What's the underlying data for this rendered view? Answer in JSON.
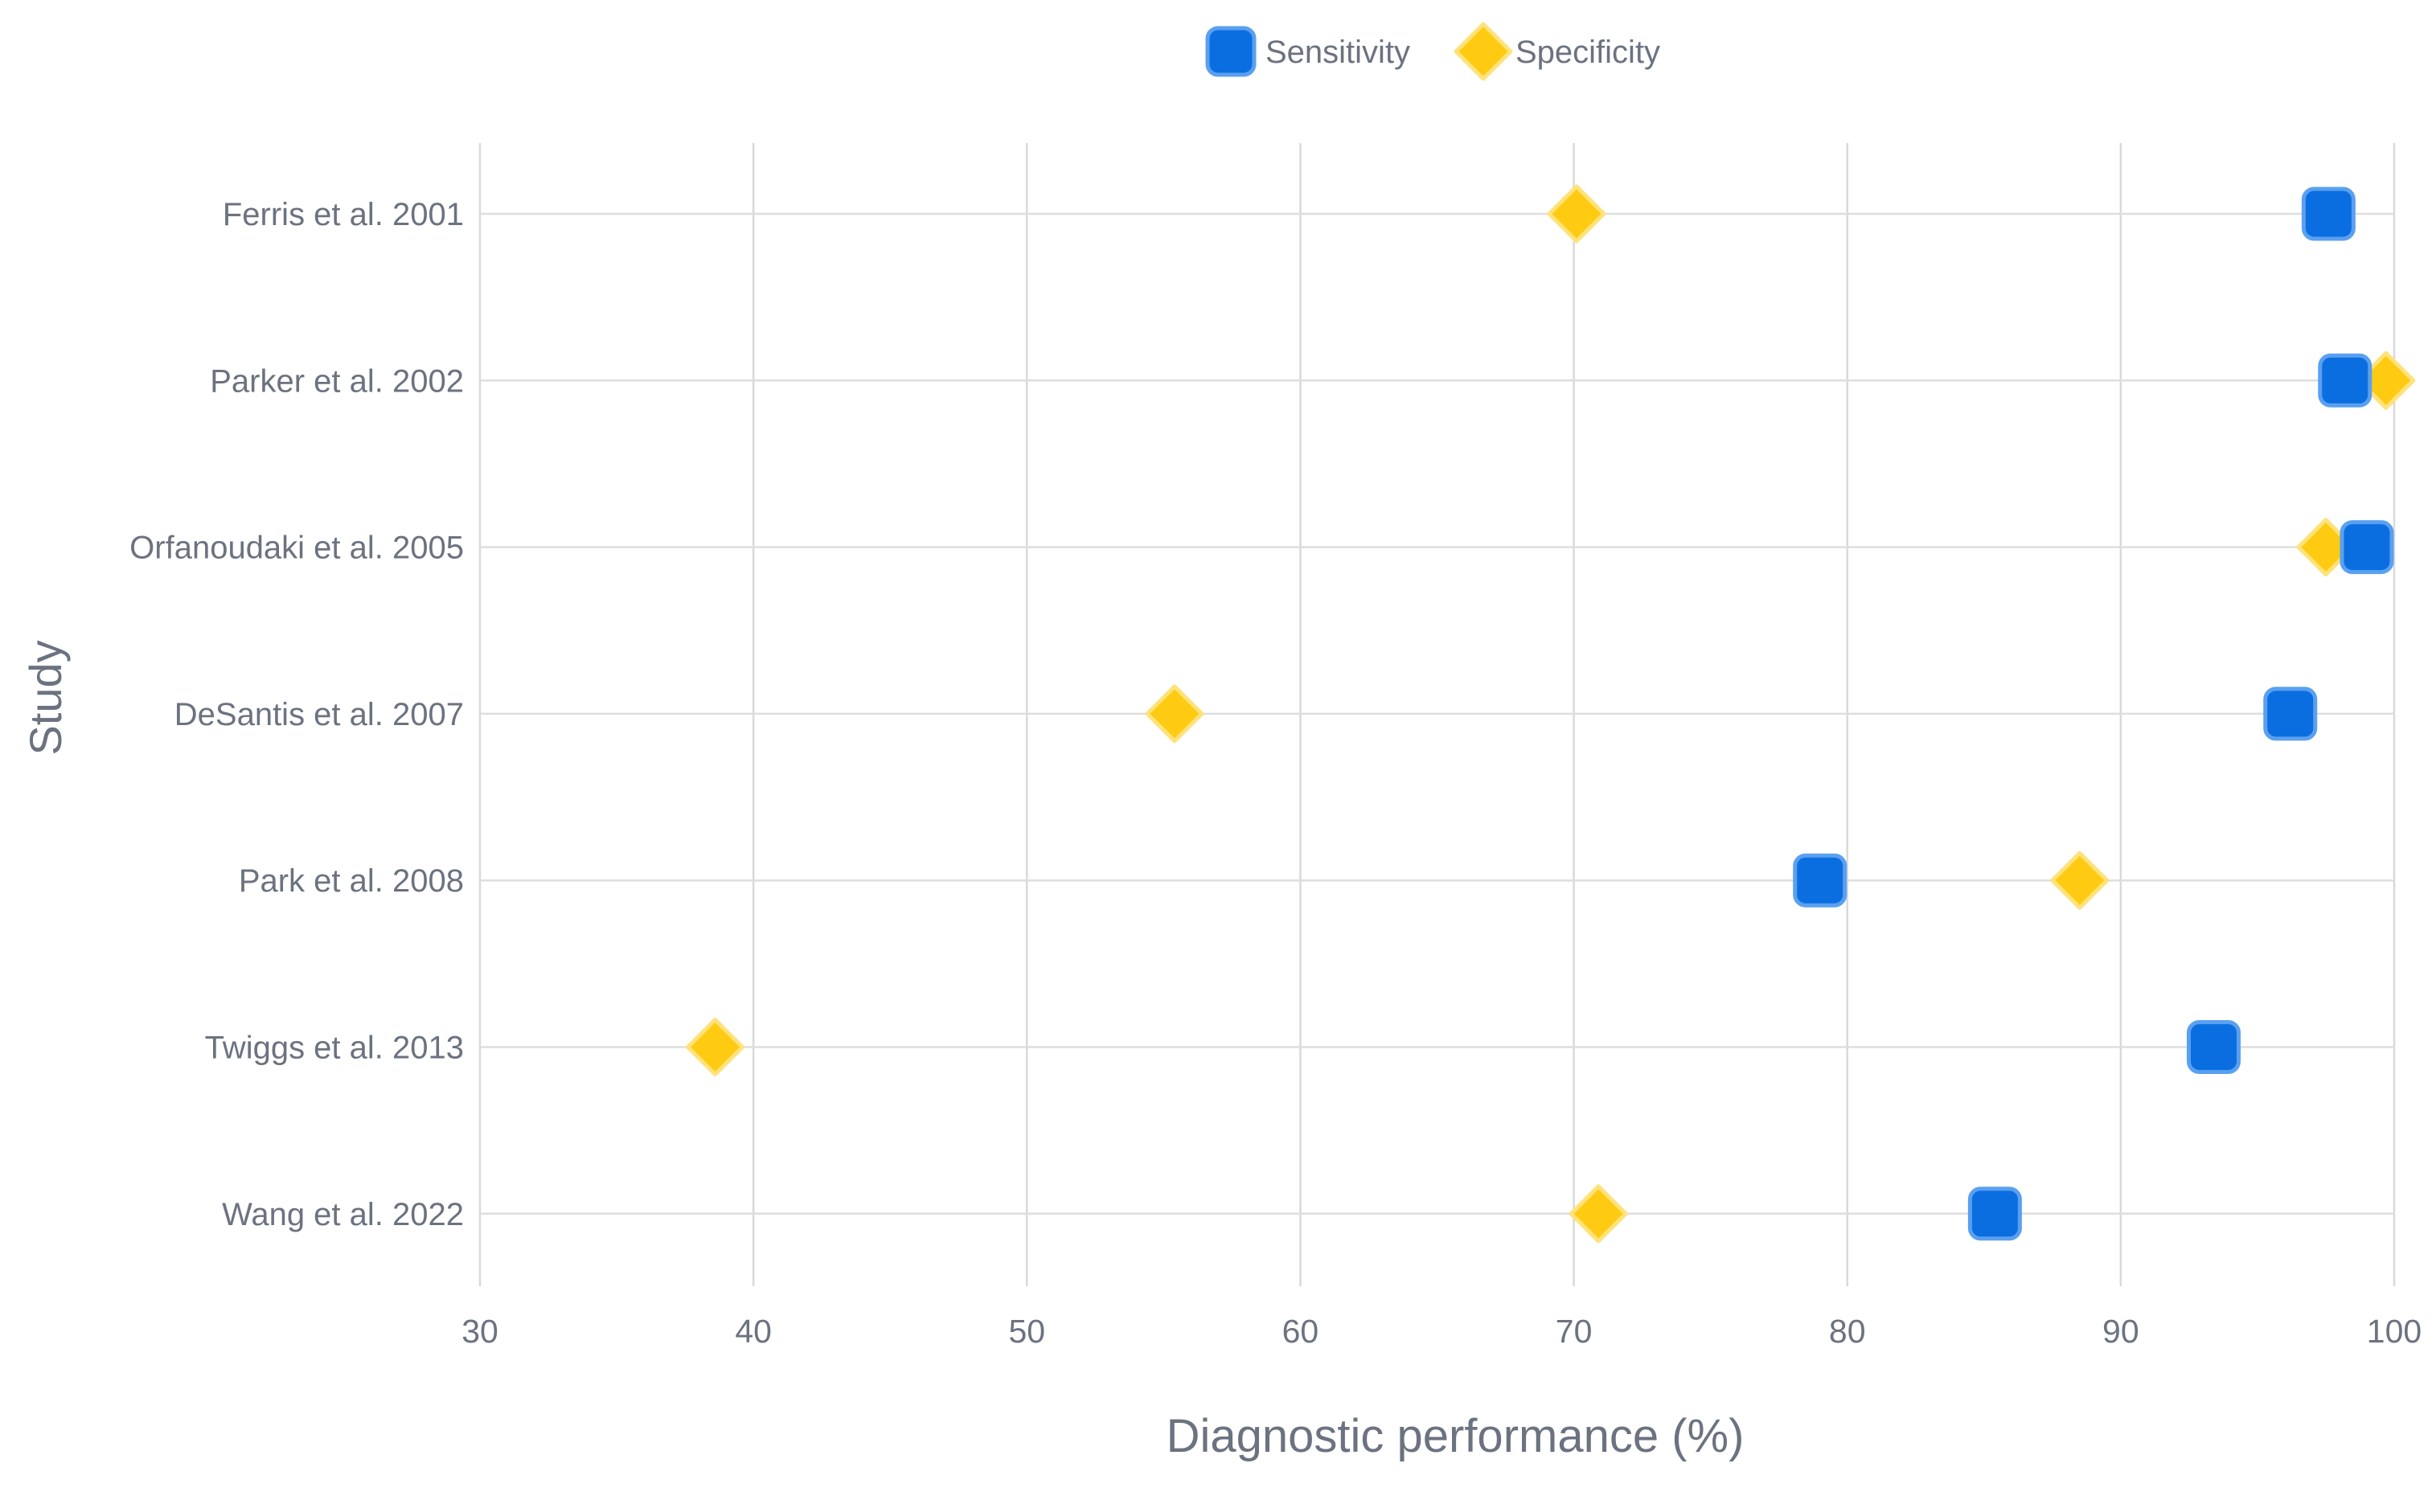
{
  "chart_data": {
    "type": "scatter",
    "title": "",
    "xlabel": "Diagnostic performance (%)",
    "ylabel": "Study",
    "xlim": [
      30,
      100
    ],
    "xticks": [
      30,
      40,
      50,
      60,
      70,
      80,
      90,
      100
    ],
    "grid": true,
    "legend_position": "top-center",
    "categories": [
      "Ferris et al. 2001",
      "Parker et al. 2002",
      "Orfanoudaki et al. 2005",
      "DeSantis et al. 2007",
      "Park et al. 2008",
      "Twiggs et al. 2013",
      "Wang et al. 2022"
    ],
    "series": [
      {
        "name": "Sensitivity",
        "marker": "square",
        "color": "#0b6ee0",
        "border": "#5aa0f0",
        "values": [
          97.6,
          98.2,
          99.0,
          96.2,
          79.0,
          93.4,
          85.4
        ]
      },
      {
        "name": "Specificity",
        "marker": "diamond",
        "color": "#fecb12",
        "border": "#ffe27a",
        "values": [
          70.1,
          99.7,
          97.5,
          55.4,
          88.5,
          38.6,
          70.9
        ]
      }
    ]
  }
}
